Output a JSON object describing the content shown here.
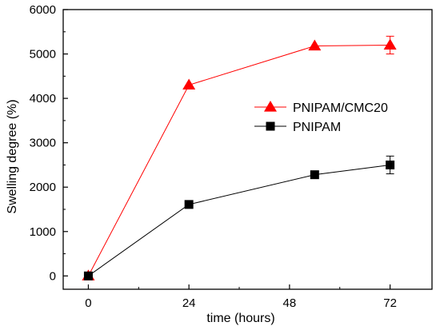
{
  "chart_data": {
    "type": "scatter",
    "title": "",
    "xlabel": "time (hours)",
    "ylabel": "Swelling degree (%)",
    "xlim": [
      -6,
      82
    ],
    "ylim": [
      -300,
      6000
    ],
    "x_ticks": [
      0,
      24,
      48,
      72
    ],
    "y_ticks": [
      0,
      1000,
      2000,
      3000,
      4000,
      5000,
      6000
    ],
    "grid": false,
    "legend_position": "right",
    "series": [
      {
        "name": "PNIPAM/CMC20",
        "color": "#ff0000",
        "marker": "triangle",
        "x": [
          0,
          24,
          54,
          72
        ],
        "y": [
          0,
          4300,
          5180,
          5200
        ],
        "error": [
          0,
          0,
          0,
          200
        ]
      },
      {
        "name": "PNIPAM",
        "color": "#000000",
        "marker": "square",
        "x": [
          0,
          24,
          54,
          72
        ],
        "y": [
          0,
          1610,
          2280,
          2500
        ],
        "error": [
          0,
          0,
          0,
          200
        ]
      }
    ]
  }
}
